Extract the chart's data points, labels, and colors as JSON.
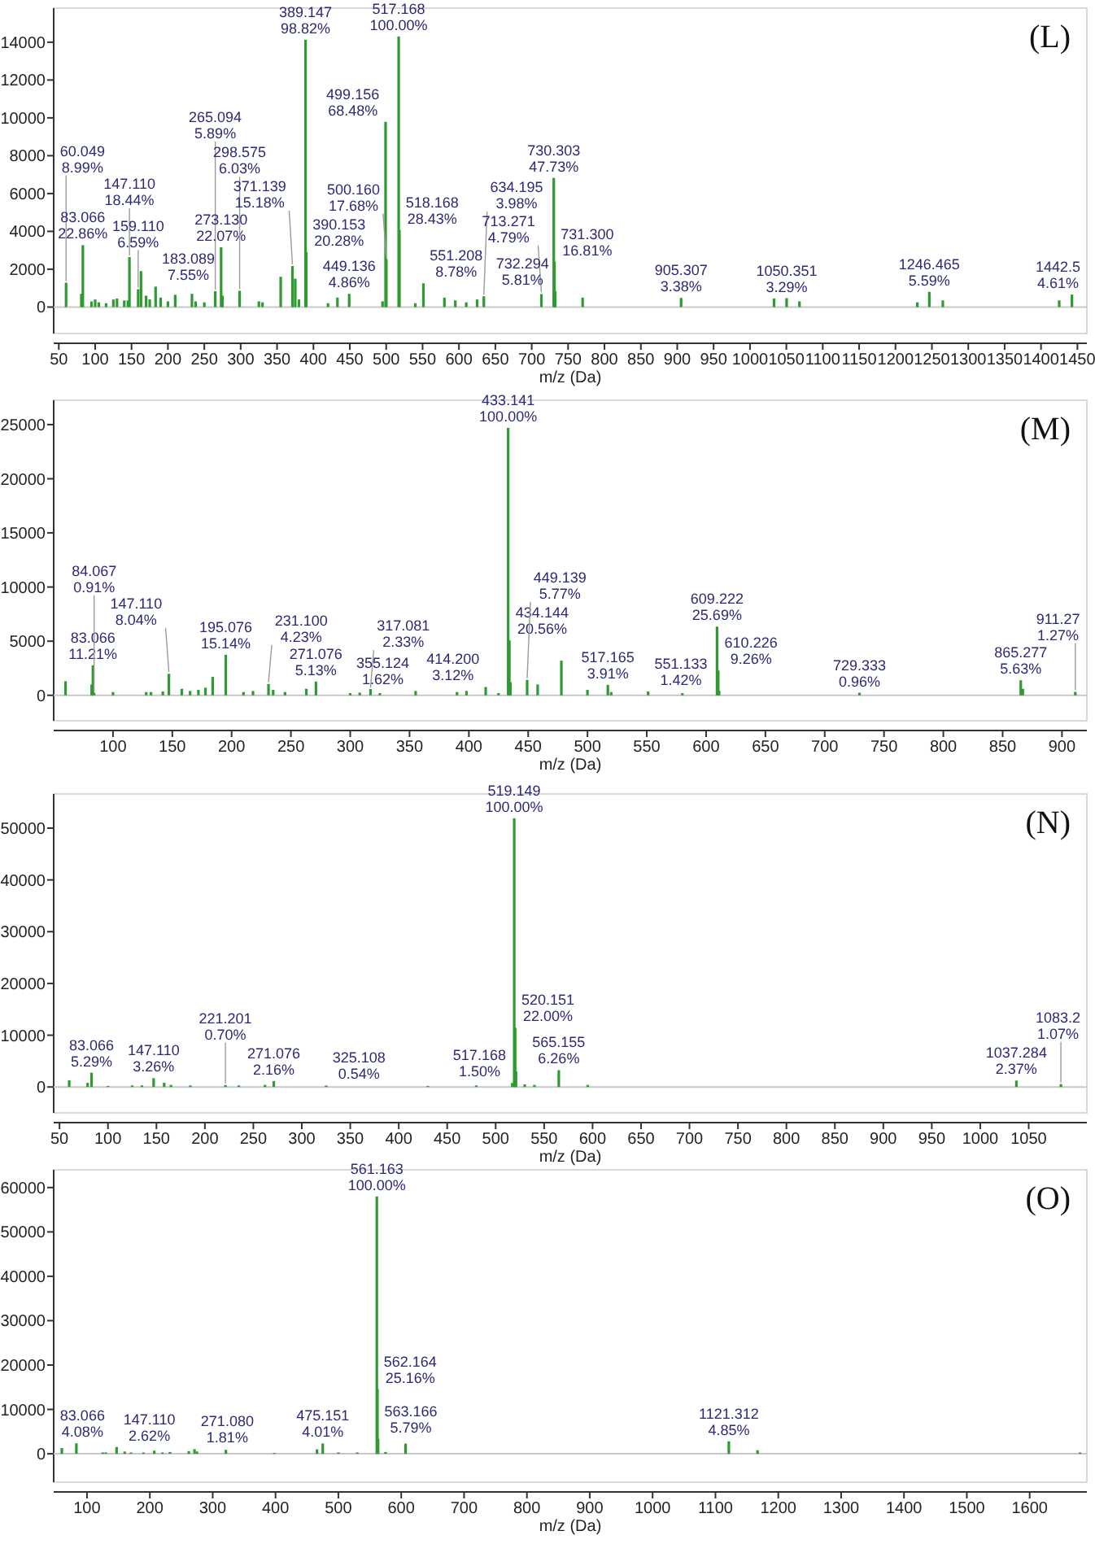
{
  "chart_data": [
    {
      "type": "bar",
      "title": "(L)",
      "xlabel": "m/z (Da)",
      "color": "#2f9a2f",
      "xlim": [
        43,
        1463
      ],
      "xticks": [
        50,
        100,
        150,
        200,
        250,
        300,
        350,
        400,
        450,
        500,
        550,
        600,
        650,
        700,
        750,
        800,
        850,
        900,
        950,
        1000,
        1050,
        1100,
        1150,
        1200,
        1250,
        1300,
        1350,
        1400,
        1450
      ],
      "ylim": [
        -1400,
        15800
      ],
      "yticks": [
        0,
        2000,
        4000,
        6000,
        8000,
        10000,
        12000,
        14000
      ],
      "x": [
        60.049,
        81,
        83.066,
        95,
        100,
        105,
        115,
        125,
        130,
        140,
        145,
        147.11,
        159.11,
        163,
        170,
        175,
        183.089,
        190,
        200,
        210,
        233,
        238,
        250,
        265.094,
        273.13,
        275,
        298.575,
        325,
        330,
        355,
        371.139,
        375,
        380,
        389.147,
        390.153,
        420,
        433,
        449.136,
        495,
        499.156,
        500.16,
        517.168,
        518.168,
        540,
        551.208,
        580,
        595,
        610,
        625,
        634.195,
        713.271,
        730.303,
        731.3,
        732.294,
        770,
        905.307,
        1033,
        1050.351,
        1068,
        1230,
        1246.465,
        1265,
        1425,
        1442.5
      ],
      "values": [
        1285,
        700,
        3270,
        300,
        400,
        250,
        200,
        400,
        450,
        350,
        350,
        2640,
        940,
        1900,
        600,
        400,
        1080,
        500,
        300,
        650,
        700,
        300,
        250,
        840,
        3160,
        600,
        860,
        300,
        250,
        1600,
        2170,
        1500,
        400,
        14130,
        2900,
        200,
        500,
        695,
        300,
        9790,
        2530,
        14300,
        4070,
        200,
        1255,
        500,
        350,
        250,
        400,
        570,
        685,
        6825,
        2400,
        830,
        500,
        485,
        450,
        470,
        300,
        250,
        800,
        350,
        350,
        660
      ],
      "ref_lines": [
        {
          "axis": "y",
          "value": 0,
          "color": "#c8c8c8"
        }
      ],
      "annotations": [
        {
          "text": "60.049\n8.99%",
          "x": 60.049,
          "y": 1285
        },
        {
          "text": "83.066\n22.86%",
          "x": 83.066,
          "y": 3270
        },
        {
          "text": "147.110\n18.44%",
          "x": 147.11,
          "y": 2640
        },
        {
          "text": "159.110\n6.59%",
          "x": 159.11,
          "y": 940
        },
        {
          "text": "183.089\n7.55%",
          "x": 183.089,
          "y": 1080
        },
        {
          "text": "265.094\n5.89%",
          "x": 265.094,
          "y": 840
        },
        {
          "text": "273.130\n22.07%",
          "x": 273.13,
          "y": 3160
        },
        {
          "text": "298.575\n6.03%",
          "x": 298.575,
          "y": 860
        },
        {
          "text": "371.139\n15.18%",
          "x": 371.139,
          "y": 2170
        },
        {
          "text": "389.147\n98.82%",
          "x": 389.147,
          "y": 14130
        },
        {
          "text": "390.153\n20.28%",
          "x": 390.153,
          "y": 2900
        },
        {
          "text": "449.136\n4.86%",
          "x": 449.136,
          "y": 695
        },
        {
          "text": "499.156\n68.48%",
          "x": 499.156,
          "y": 9790
        },
        {
          "text": "500.160\n17.68%",
          "x": 500.16,
          "y": 2530
        },
        {
          "text": "517.168\n100.00%",
          "x": 517.168,
          "y": 14300
        },
        {
          "text": "518.168\n28.43%",
          "x": 518.168,
          "y": 4070
        },
        {
          "text": "551.208\n8.78%",
          "x": 551.208,
          "y": 1255
        },
        {
          "text": "634.195\n3.98%",
          "x": 634.195,
          "y": 570
        },
        {
          "text": "713.271\n4.79%",
          "x": 713.271,
          "y": 685
        },
        {
          "text": "730.303\n47.73%",
          "x": 730.303,
          "y": 6825
        },
        {
          "text": "731.300\n16.81%",
          "x": 731.3,
          "y": 2400
        },
        {
          "text": "732.294\n5.81%",
          "x": 732.294,
          "y": 830
        },
        {
          "text": "905.307\n3.38%",
          "x": 905.307,
          "y": 485
        },
        {
          "text": "1050.351\n3.29%",
          "x": 1050.351,
          "y": 470
        },
        {
          "text": "1246.465\n5.59%",
          "x": 1246.465,
          "y": 800
        },
        {
          "text": "1442.5\n4.61%",
          "x": 1442.5,
          "y": 660
        }
      ]
    },
    {
      "type": "bar",
      "title": "(M)",
      "xlabel": "m/z (Da)",
      "color": "#2f9a2f",
      "xlim": [
        50,
        921
      ],
      "xticks": [
        100,
        150,
        200,
        250,
        300,
        350,
        400,
        450,
        500,
        550,
        600,
        650,
        700,
        750,
        800,
        850,
        900
      ],
      "ylim": [
        -2350,
        27250
      ],
      "yticks": [
        0,
        5000,
        10000,
        15000,
        20000,
        25000
      ],
      "x": [
        60,
        82,
        83.066,
        84.067,
        100,
        128,
        132,
        142,
        147.11,
        158,
        165,
        172,
        178,
        184,
        195.076,
        210,
        218,
        231.1,
        235,
        245,
        263,
        271.076,
        300,
        308,
        317.081,
        325,
        355.124,
        390,
        398,
        414.2,
        425,
        433.141,
        434.144,
        435,
        449.139,
        458,
        478,
        500,
        517.165,
        520,
        551.133,
        580,
        609.222,
        610.226,
        611,
        729.333,
        865.277,
        867,
        911.27
      ],
      "values": [
        1300,
        1000,
        2770,
        225,
        300,
        300,
        300,
        350,
        1985,
        600,
        400,
        500,
        700,
        1700,
        3740,
        300,
        400,
        1045,
        500,
        300,
        600,
        1270,
        200,
        250,
        575,
        200,
        400,
        300,
        400,
        770,
        200,
        24700,
        5080,
        1200,
        1425,
        1000,
        3200,
        500,
        965,
        300,
        350,
        200,
        6345,
        2290,
        400,
        240,
        1390,
        600,
        315
      ],
      "ref_lines": [
        {
          "axis": "y",
          "value": 0,
          "color": "#c8c8c8"
        }
      ],
      "annotations": [
        {
          "text": "83.066\n11.21%",
          "x": 83.066,
          "y": 2770
        },
        {
          "text": "84.067\n0.91%",
          "x": 84.067,
          "y": 225
        },
        {
          "text": "147.110\n8.04%",
          "x": 147.11,
          "y": 1985
        },
        {
          "text": "195.076\n15.14%",
          "x": 195.076,
          "y": 3740
        },
        {
          "text": "231.100\n4.23%",
          "x": 231.1,
          "y": 1045
        },
        {
          "text": "271.076\n5.13%",
          "x": 271.076,
          "y": 1270
        },
        {
          "text": "317.081\n2.33%",
          "x": 317.081,
          "y": 575
        },
        {
          "text": "355.124\n1.62%",
          "x": 355.124,
          "y": 400
        },
        {
          "text": "414.200\n3.12%",
          "x": 414.2,
          "y": 770
        },
        {
          "text": "433.141\n100.00%",
          "x": 433.141,
          "y": 24700
        },
        {
          "text": "434.144\n20.56%",
          "x": 434.144,
          "y": 5080
        },
        {
          "text": "449.139\n5.77%",
          "x": 449.139,
          "y": 1425
        },
        {
          "text": "517.165\n3.91%",
          "x": 517.165,
          "y": 965
        },
        {
          "text": "551.133\n1.42%",
          "x": 551.133,
          "y": 350
        },
        {
          "text": "609.222\n25.69%",
          "x": 609.222,
          "y": 6345
        },
        {
          "text": "610.226\n9.26%",
          "x": 610.226,
          "y": 2290
        },
        {
          "text": "729.333\n0.96%",
          "x": 729.333,
          "y": 240
        },
        {
          "text": "865.277\n5.63%",
          "x": 865.277,
          "y": 1390
        },
        {
          "text": "911.27\n1.27%",
          "x": 911.27,
          "y": 315
        }
      ]
    },
    {
      "type": "bar",
      "title": "(N)",
      "xlabel": "m/z (Da)",
      "color": "#2f9a2f",
      "xlim": [
        44,
        1110
      ],
      "xticks": [
        50,
        100,
        150,
        200,
        250,
        300,
        350,
        400,
        450,
        500,
        550,
        600,
        650,
        700,
        750,
        800,
        850,
        900,
        950,
        1000,
        1050
      ],
      "ylim": [
        -5000,
        56600
      ],
      "yticks": [
        0,
        10000,
        20000,
        30000,
        40000,
        50000
      ],
      "x": [
        60,
        79,
        83.066,
        100,
        125,
        135,
        147.11,
        158,
        165,
        185,
        221.201,
        235,
        262,
        271.076,
        325.108,
        430,
        480,
        517.168,
        519.149,
        520.151,
        521,
        530,
        540,
        565.155,
        595,
        1037.284,
        1083.2
      ],
      "values": [
        1300,
        800,
        2750,
        200,
        300,
        300,
        1695,
        800,
        400,
        300,
        365,
        300,
        400,
        1125,
        280,
        200,
        300,
        780,
        51900,
        11440,
        3000,
        500,
        400,
        3255,
        400,
        1230,
        555
      ],
      "ref_lines": [
        {
          "axis": "y",
          "value": 0,
          "color": "#c8c8c8"
        }
      ],
      "annotations": [
        {
          "text": "83.066\n5.29%",
          "x": 83.066,
          "y": 2750
        },
        {
          "text": "147.110\n3.26%",
          "x": 147.11,
          "y": 1695
        },
        {
          "text": "221.201\n0.70%",
          "x": 221.201,
          "y": 365
        },
        {
          "text": "271.076\n2.16%",
          "x": 271.076,
          "y": 1125
        },
        {
          "text": "325.108\n0.54%",
          "x": 325.108,
          "y": 280
        },
        {
          "text": "517.168\n1.50%",
          "x": 517.168,
          "y": 780
        },
        {
          "text": "519.149\n100.00%",
          "x": 519.149,
          "y": 51900
        },
        {
          "text": "520.151\n22.00%",
          "x": 520.151,
          "y": 11440
        },
        {
          "text": "565.155\n6.26%",
          "x": 565.155,
          "y": 3255
        },
        {
          "text": "1037.284\n2.37%",
          "x": 1037.284,
          "y": 1230
        },
        {
          "text": "1083.2\n1.07%",
          "x": 1083.2,
          "y": 555
        }
      ]
    },
    {
      "type": "bar",
      "title": "(O)",
      "xlabel": "m/z (Da)",
      "color": "#2f9a2f",
      "xlim": [
        47,
        1691
      ],
      "xticks": [
        100,
        200,
        300,
        400,
        500,
        600,
        700,
        800,
        900,
        1000,
        1100,
        1200,
        1300,
        1400,
        1500,
        1600
      ],
      "ylim": [
        -6400,
        64000
      ],
      "yticks": [
        0,
        10000,
        20000,
        30000,
        40000,
        50000,
        60000
      ],
      "x": [
        60,
        83.066,
        125,
        130,
        147.11,
        160,
        170,
        190,
        207,
        220,
        232,
        262,
        271.08,
        275,
        321,
        398,
        466,
        475.151,
        500,
        530,
        561.163,
        562.164,
        563.166,
        575,
        607,
        1121.312,
        1167,
        1680
      ],
      "values": [
        1300,
        2365,
        300,
        300,
        1520,
        500,
        300,
        300,
        700,
        300,
        400,
        600,
        1050,
        500,
        900,
        200,
        1000,
        2325,
        300,
        300,
        58000,
        14590,
        3360,
        400,
        2300,
        2815,
        800,
        300
      ],
      "ref_lines": [
        {
          "axis": "y",
          "value": 0,
          "color": "#c8c8c8"
        }
      ],
      "annotations": [
        {
          "text": "83.066\n4.08%",
          "x": 83.066,
          "y": 2365
        },
        {
          "text": "147.110\n2.62%",
          "x": 147.11,
          "y": 1520
        },
        {
          "text": "271.080\n1.81%",
          "x": 271.08,
          "y": 1050
        },
        {
          "text": "475.151\n4.01%",
          "x": 475.151,
          "y": 2325
        },
        {
          "text": "561.163\n100.00%",
          "x": 561.163,
          "y": 58000
        },
        {
          "text": "562.164\n25.16%",
          "x": 562.164,
          "y": 14590
        },
        {
          "text": "563.166\n5.79%",
          "x": 563.166,
          "y": 3360
        },
        {
          "text": "1121.312\n4.85%",
          "x": 1121.312,
          "y": 2815
        }
      ]
    }
  ]
}
